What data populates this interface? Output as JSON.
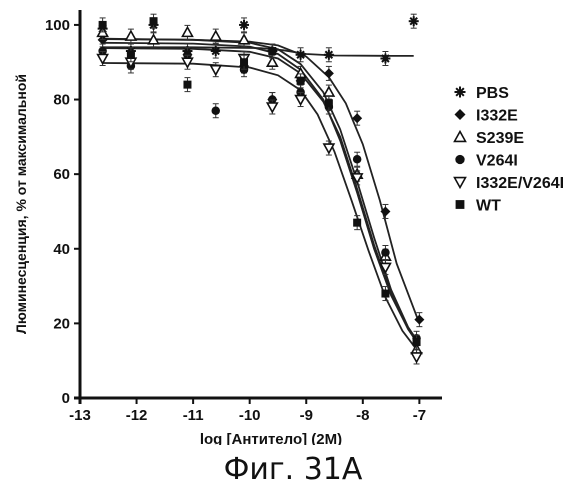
{
  "figure": {
    "caption": "Фиг. 31А"
  },
  "chart_data": {
    "type": "scatter",
    "title": "",
    "xlabel": "log [Антитело] (2М)",
    "ylabel": "Люминесценция, % от максимальной",
    "xlim": [
      -13,
      -6.6
    ],
    "ylim": [
      0,
      104
    ],
    "x_ticks": [
      -13,
      -12,
      -11,
      -10,
      -9,
      -8,
      -7
    ],
    "x_tick_labels": [
      "-13",
      "-12",
      "-11",
      "-10",
      "-9",
      "-8",
      "-7"
    ],
    "y_ticks": [
      0,
      20,
      40,
      60,
      80,
      100
    ],
    "y_tick_labels": [
      "0",
      "20",
      "40",
      "60",
      "80",
      "100"
    ],
    "grid": false,
    "legend_position": "right",
    "series": [
      {
        "name": "PBS",
        "marker": "asterisk",
        "x": [
          -12.6,
          -12.1,
          -11.7,
          -11.1,
          -10.6,
          -10.1,
          -9.6,
          -9.1,
          -8.6,
          -7.6,
          -7.1
        ],
        "y": [
          99,
          93,
          100,
          93,
          93,
          100,
          93,
          92,
          92,
          91,
          101
        ],
        "fit_x": [
          -12.6,
          -11,
          -9.8,
          -9.4,
          -9.0,
          -8.5,
          -7.5,
          -7.1
        ],
        "fit_y": [
          94,
          94,
          93.8,
          93.2,
          92.2,
          91.8,
          91.7,
          91.7
        ]
      },
      {
        "name": "I332E",
        "marker": "diamond",
        "x": [
          -12.6,
          -12.1,
          -11.1,
          -10.1,
          -9.6,
          -9.1,
          -8.6,
          -8.1,
          -7.6,
          -7.0
        ],
        "y": [
          96,
          91,
          92,
          89,
          80,
          85,
          87,
          75,
          50,
          21
        ],
        "fit_x": [
          -12.6,
          -11,
          -10,
          -9.5,
          -9,
          -8.6,
          -8.3,
          -8.0,
          -7.7,
          -7.4,
          -7.0
        ],
        "fit_y": [
          96.3,
          96,
          95.5,
          94.5,
          91.5,
          86,
          79,
          68,
          53,
          36,
          20
        ]
      },
      {
        "name": "S239E",
        "marker": "triangle-up",
        "x": [
          -12.6,
          -12.1,
          -11.7,
          -11.1,
          -10.6,
          -10.1,
          -9.6,
          -9.1,
          -8.6,
          -8.1,
          -7.6,
          -7.05
        ],
        "y": [
          98,
          97,
          96,
          98,
          97,
          96,
          90,
          87,
          82,
          60,
          38,
          13
        ],
        "fit_x": [
          -12.6,
          -11,
          -10,
          -9.5,
          -9.1,
          -8.7,
          -8.4,
          -8.1,
          -7.8,
          -7.5,
          -7.2,
          -7.0
        ],
        "fit_y": [
          96.2,
          96,
          95.2,
          93.5,
          89.5,
          82,
          72,
          58,
          43,
          29,
          19,
          14.5
        ]
      },
      {
        "name": "V264I",
        "marker": "circle",
        "x": [
          -12.6,
          -12.1,
          -11.1,
          -10.6,
          -10.1,
          -9.6,
          -9.1,
          -8.6,
          -8.1,
          -7.6,
          -7.05
        ],
        "y": [
          93,
          89,
          92,
          77,
          88,
          80,
          82,
          78,
          64,
          39,
          16
        ],
        "fit_x": [
          -12.6,
          -11,
          -10,
          -9.5,
          -9.1,
          -8.7,
          -8.4,
          -8.1,
          -7.8,
          -7.5,
          -7.2,
          -7.0
        ],
        "fit_y": [
          93.8,
          93.6,
          92.8,
          91,
          87,
          79.5,
          70,
          56,
          41,
          28,
          18.5,
          14
        ]
      },
      {
        "name": "I332E/V264I",
        "marker": "triangle-down",
        "x": [
          -12.6,
          -12.1,
          -11.1,
          -10.6,
          -10.1,
          -9.6,
          -9.1,
          -8.6,
          -8.1,
          -7.6,
          -7.05
        ],
        "y": [
          91,
          90,
          90,
          88,
          91,
          78,
          80,
          67,
          59,
          35,
          11
        ],
        "fit_x": [
          -12.6,
          -11,
          -10,
          -9.5,
          -9.1,
          -8.8,
          -8.5,
          -8.2,
          -7.9,
          -7.6,
          -7.3,
          -7.0
        ],
        "fit_y": [
          89.8,
          89.6,
          88.6,
          86.5,
          82.5,
          76,
          66,
          53,
          39.5,
          27,
          18,
          12
        ]
      },
      {
        "name": "WT",
        "marker": "square",
        "x": [
          -12.6,
          -12.1,
          -11.7,
          -11.1,
          -10.1,
          -9.6,
          -9.1,
          -8.6,
          -8.1,
          -7.6,
          -7.05
        ],
        "y": [
          100,
          92,
          101,
          84,
          90,
          93,
          85,
          79,
          47,
          28,
          15
        ],
        "fit_x": [
          -12.6,
          -11,
          -10,
          -9.5,
          -9.1,
          -8.7,
          -8.4,
          -8.1,
          -7.8,
          -7.5,
          -7.2,
          -7.0
        ],
        "fit_y": [
          95.2,
          95,
          94.2,
          92.2,
          88,
          80,
          69,
          55,
          40,
          27.5,
          18.5,
          14
        ]
      }
    ]
  }
}
